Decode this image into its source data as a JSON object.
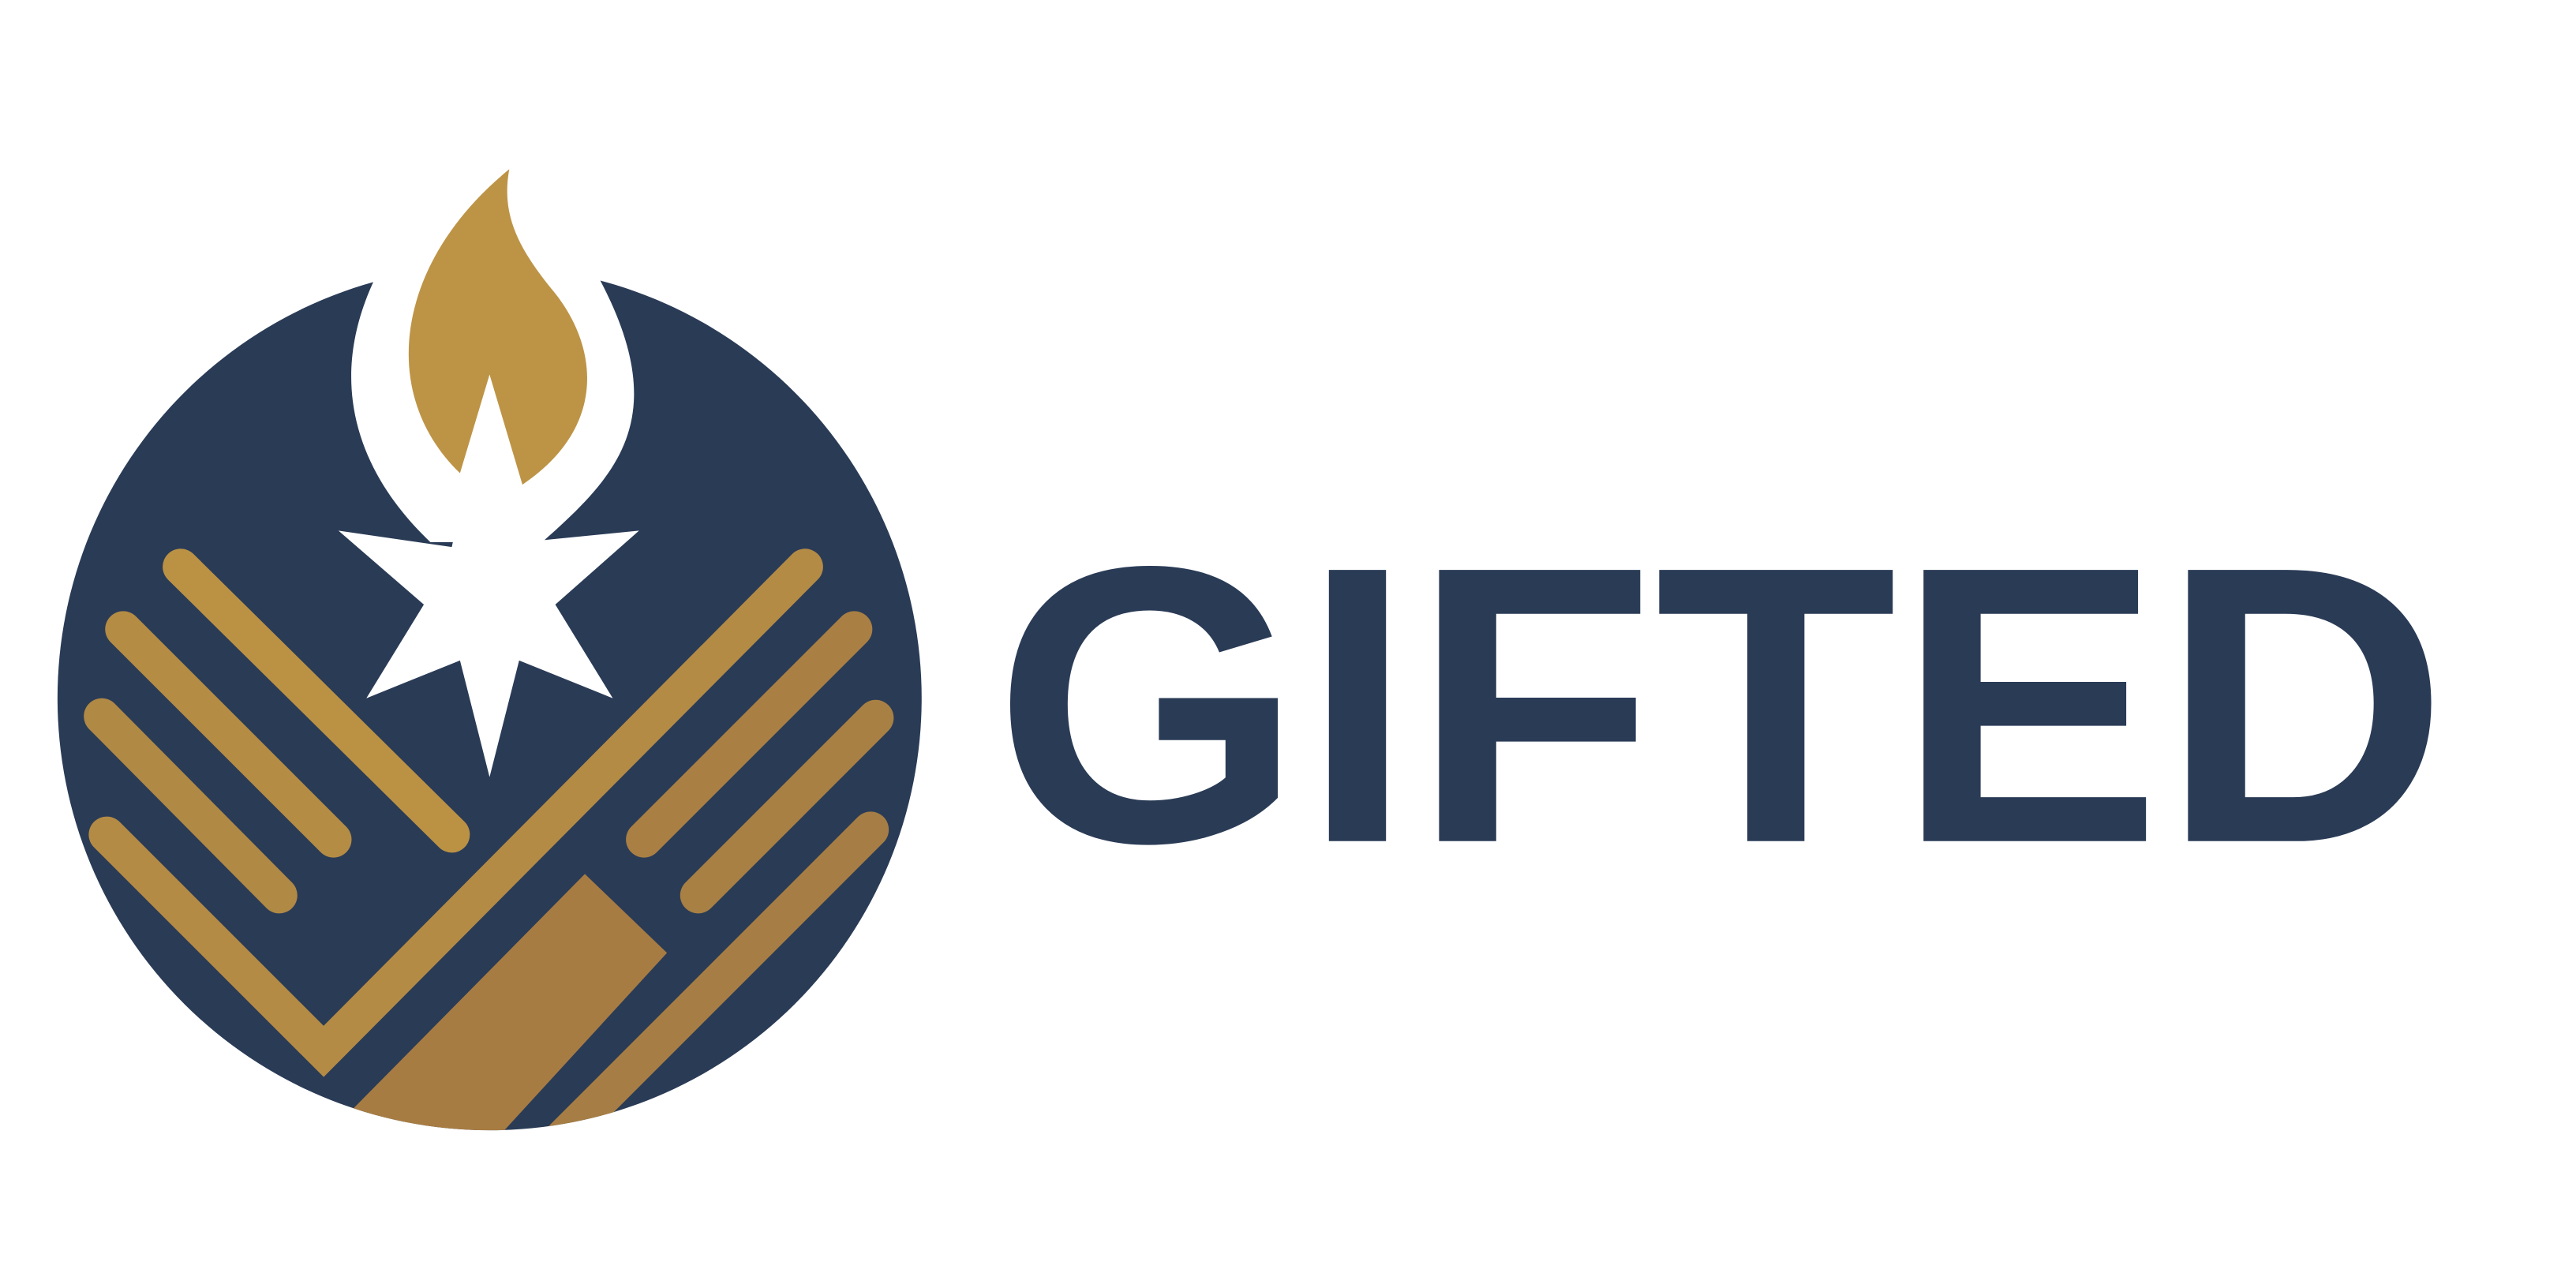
{
  "logo": {
    "wordmark": "GIFTED"
  }
}
